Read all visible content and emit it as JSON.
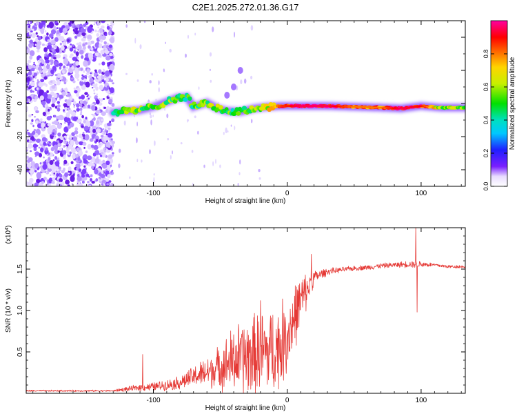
{
  "title": "C2E1.2025.272.01.36.G17",
  "chart_data": [
    {
      "type": "heatmap",
      "title": "C2E1.2025.272.01.36.G17",
      "xlabel": "Height of straight line (km)",
      "ylabel": "Frequency (Hz)",
      "xlim": [
        -195,
        133
      ],
      "ylim": [
        -50,
        50
      ],
      "x_ticks": [
        -100,
        0,
        100
      ],
      "x_tick_labels": [
        "-100",
        "0",
        "100"
      ],
      "y_ticks": [
        -40,
        -20,
        0,
        20,
        40
      ],
      "y_tick_labels": [
        "-40",
        "-20",
        "0",
        "20",
        "40"
      ],
      "colorbar": {
        "label": "Normalized spectral amplitude",
        "range": [
          0,
          1
        ],
        "ticks": [
          0,
          0.2,
          0.4,
          0.6,
          0.8
        ],
        "tick_labels": [
          "0.0",
          "0.2",
          "0.4",
          "0.6",
          "0.8"
        ]
      },
      "noise_region_km": [
        -195,
        -130
      ],
      "signal_trace": [
        {
          "x": -130,
          "y": -5.5,
          "a": 0.45
        },
        {
          "x": -120,
          "y": -4.5,
          "a": 0.55
        },
        {
          "x": -110,
          "y": -4.0,
          "a": 0.55
        },
        {
          "x": -100,
          "y": -2.0,
          "a": 0.55
        },
        {
          "x": -90,
          "y": 1.0,
          "a": 0.55
        },
        {
          "x": -82,
          "y": 3.5,
          "a": 0.5
        },
        {
          "x": -75,
          "y": 4.0,
          "a": 0.45
        },
        {
          "x": -70,
          "y": -2.0,
          "a": 0.5
        },
        {
          "x": -60,
          "y": 0.5,
          "a": 0.55
        },
        {
          "x": -52,
          "y": -3.0,
          "a": 0.55
        },
        {
          "x": -45,
          "y": -4.5,
          "a": 0.5
        },
        {
          "x": -35,
          "y": -5.0,
          "a": 0.5
        },
        {
          "x": -25,
          "y": -3.0,
          "a": 0.55
        },
        {
          "x": -15,
          "y": -2.0,
          "a": 0.65
        },
        {
          "x": -5,
          "y": -1.5,
          "a": 0.85
        },
        {
          "x": 10,
          "y": -1.5,
          "a": 0.95
        },
        {
          "x": 30,
          "y": -1.5,
          "a": 0.95
        },
        {
          "x": 50,
          "y": -2.0,
          "a": 0.8
        },
        {
          "x": 70,
          "y": -2.5,
          "a": 0.8
        },
        {
          "x": 85,
          "y": -3.0,
          "a": 0.95
        },
        {
          "x": 100,
          "y": -1.5,
          "a": 0.9
        },
        {
          "x": 115,
          "y": -2.5,
          "a": 0.6
        },
        {
          "x": 133,
          "y": -2.5,
          "a": 0.55
        }
      ],
      "branch_trace": [
        {
          "x": -45,
          "y": 5.0
        },
        {
          "x": -40,
          "y": 10.0
        },
        {
          "x": -35,
          "y": 20.0
        }
      ]
    },
    {
      "type": "line",
      "xlabel": "Height of straight line (km)",
      "ylabel": "SNR (10 * v/v)",
      "y_scale_label": "(x10",
      "y_scale_exponent": "4",
      "xlim": [
        -195,
        133
      ],
      "ylim": [
        0,
        2.0
      ],
      "x_ticks": [
        -100,
        0,
        100
      ],
      "x_tick_labels": [
        "-100",
        "0",
        "100"
      ],
      "y_ticks": [
        0.5,
        1.0,
        1.5
      ],
      "y_tick_labels": [
        "0.5",
        "1.0",
        "1.5"
      ],
      "color": "#e53935",
      "envelope": {
        "x": [
          -195,
          -130,
          -125,
          -110,
          -100,
          -90,
          -80,
          -70,
          -60,
          -50,
          -40,
          -30,
          -20,
          -10,
          -5,
          0,
          5,
          10,
          15,
          20,
          30,
          40,
          50,
          60,
          70,
          80,
          90,
          100,
          110,
          120,
          133
        ],
        "mid": [
          0.03,
          0.03,
          0.04,
          0.07,
          0.08,
          0.1,
          0.13,
          0.2,
          0.25,
          0.32,
          0.4,
          0.44,
          0.48,
          0.52,
          0.58,
          0.7,
          0.9,
          1.12,
          1.25,
          1.4,
          1.47,
          1.49,
          1.51,
          1.52,
          1.54,
          1.55,
          1.56,
          1.56,
          1.55,
          1.53,
          1.53
        ],
        "amp": [
          0.01,
          0.01,
          0.02,
          0.04,
          0.05,
          0.06,
          0.08,
          0.12,
          0.18,
          0.25,
          0.4,
          0.45,
          0.5,
          0.5,
          0.5,
          0.45,
          0.4,
          0.3,
          0.2,
          0.08,
          0.04,
          0.03,
          0.03,
          0.03,
          0.03,
          0.03,
          0.04,
          0.04,
          0.02,
          0.02,
          0.02
        ]
      },
      "spikes": [
        {
          "x": -108,
          "y": 0.47
        },
        {
          "x": -20,
          "y": 1.12
        },
        {
          "x": 18,
          "y": 1.68
        },
        {
          "x": 96,
          "y": 2.0
        },
        {
          "x": 97,
          "y": 0.98
        }
      ]
    }
  ]
}
